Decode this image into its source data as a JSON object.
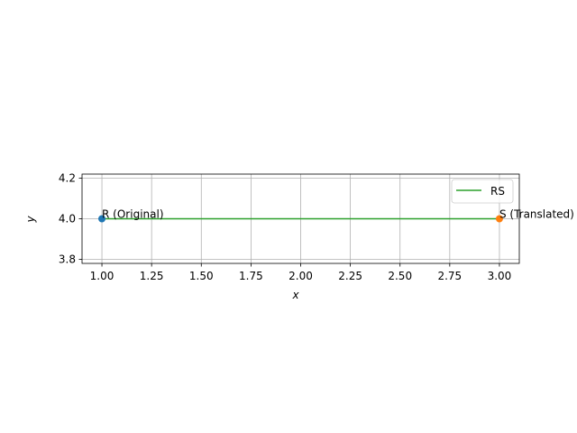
{
  "chart_data": {
    "type": "line",
    "xlabel": "x",
    "ylabel": "y",
    "xlim": [
      0.9,
      3.1
    ],
    "ylim": [
      3.78,
      4.22
    ],
    "xticks": [
      1.0,
      1.25,
      1.5,
      1.75,
      2.0,
      2.25,
      2.5,
      2.75,
      3.0
    ],
    "xtick_labels": [
      "1.00",
      "1.25",
      "1.50",
      "1.75",
      "2.00",
      "2.25",
      "2.50",
      "2.75",
      "3.00"
    ],
    "yticks": [
      3.8,
      4.0,
      4.2
    ],
    "ytick_labels": [
      "3.8",
      "4.0",
      "4.2"
    ],
    "grid": true,
    "legend_position": "top-right",
    "series": [
      {
        "name": "RS",
        "color": "#2ca02c",
        "x": [
          1,
          3
        ],
        "y": [
          4,
          4
        ]
      }
    ],
    "points": [
      {
        "label": "R (Original)",
        "x": 1,
        "y": 4,
        "color": "#1f77b4"
      },
      {
        "label": "S (Translated)",
        "x": 3,
        "y": 4,
        "color": "#ff7f0e"
      }
    ]
  }
}
